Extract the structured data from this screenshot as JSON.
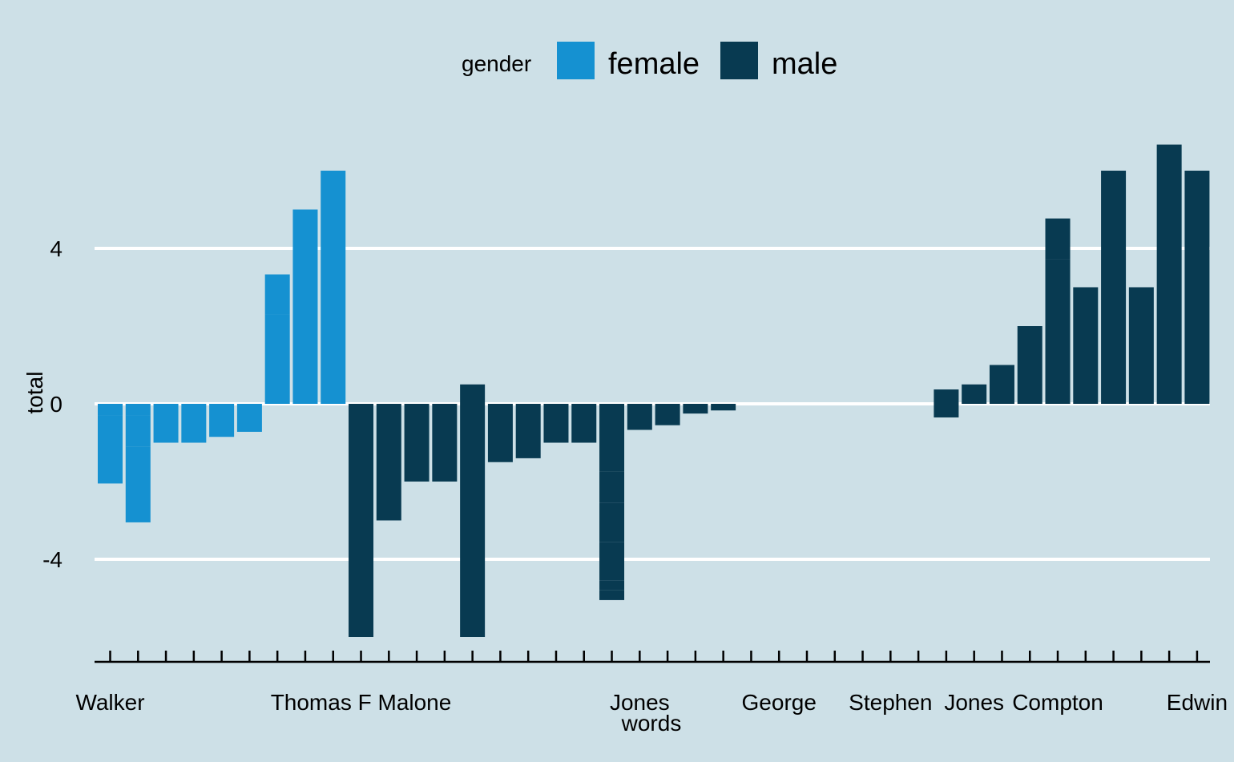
{
  "chart_data": {
    "type": "bar",
    "xlabel": "words",
    "ylabel": "total",
    "ylim": [
      -6.65,
      7.4
    ],
    "y_ticks": [
      -4,
      0,
      4
    ],
    "grid": "horizontal major lines",
    "legend": {
      "title": "gender",
      "position": "top",
      "entries": [
        {
          "name": "female",
          "color": "#1591d1"
        },
        {
          "name": "male",
          "color": "#083a51"
        }
      ]
    },
    "x_tick_count": 40,
    "x_labels": [
      {
        "index": 0,
        "text": "Walker"
      },
      {
        "index": 9,
        "text": "Thomas F Malone"
      },
      {
        "index": 19,
        "text": "Jones"
      },
      {
        "index": 24,
        "text": "George"
      },
      {
        "index": 28,
        "text": "Stephen"
      },
      {
        "index": 31,
        "text": "Jones"
      },
      {
        "index": 34,
        "text": "Compton"
      },
      {
        "index": 39,
        "text": "Edwin"
      }
    ],
    "bars": [
      {
        "gender": "female",
        "segments": [
          -0.3,
          -1.75
        ]
      },
      {
        "gender": "female",
        "segments": [
          -0.3,
          -0.8,
          -1.95
        ]
      },
      {
        "gender": "female",
        "segments": [
          -1.0
        ]
      },
      {
        "gender": "female",
        "segments": [
          -1.0
        ]
      },
      {
        "gender": "female",
        "segments": [
          -0.85
        ]
      },
      {
        "gender": "female",
        "segments": [
          -0.72
        ]
      },
      {
        "gender": "female",
        "segments": [
          2.3,
          1.03
        ]
      },
      {
        "gender": "female",
        "segments": [
          5.0
        ]
      },
      {
        "gender": "female",
        "segments": [
          6.0
        ]
      },
      {
        "gender": "male",
        "segments": [
          -6.0
        ]
      },
      {
        "gender": "male",
        "segments": [
          -3.0
        ]
      },
      {
        "gender": "male",
        "segments": [
          -2.0
        ]
      },
      {
        "gender": "male",
        "segments": [
          -2.0
        ]
      },
      {
        "gender": "male",
        "segments": [
          0.5,
          -2.0,
          -4.0
        ]
      },
      {
        "gender": "male",
        "segments": [
          -1.5
        ]
      },
      {
        "gender": "male",
        "segments": [
          -1.4
        ]
      },
      {
        "gender": "male",
        "segments": [
          -1.0
        ]
      },
      {
        "gender": "male",
        "segments": [
          -1.0
        ]
      },
      {
        "gender": "male",
        "segments": [
          -1.75,
          -0.8,
          -1.0,
          -1.0,
          -0.25,
          -0.25
        ]
      },
      {
        "gender": "male",
        "segments": [
          -0.67
        ]
      },
      {
        "gender": "male",
        "segments": [
          -0.55
        ]
      },
      {
        "gender": "male",
        "segments": [
          -0.25
        ]
      },
      {
        "gender": "male",
        "segments": [
          -0.17
        ]
      },
      {
        "gender": "male",
        "segments": []
      },
      {
        "gender": "male",
        "segments": []
      },
      {
        "gender": "male",
        "segments": []
      },
      {
        "gender": "male",
        "segments": []
      },
      {
        "gender": "male",
        "segments": []
      },
      {
        "gender": "male",
        "segments": []
      },
      {
        "gender": "male",
        "segments": []
      },
      {
        "gender": "male",
        "segments": [
          0.37,
          -0.35
        ]
      },
      {
        "gender": "male",
        "segments": [
          0.5
        ]
      },
      {
        "gender": "male",
        "segments": [
          1.0
        ]
      },
      {
        "gender": "male",
        "segments": [
          2.0
        ]
      },
      {
        "gender": "male",
        "segments": [
          3.72,
          1.05
        ]
      },
      {
        "gender": "male",
        "segments": [
          3.0
        ]
      },
      {
        "gender": "male",
        "segments": [
          6.0
        ]
      },
      {
        "gender": "male",
        "segments": [
          3.0
        ]
      },
      {
        "gender": "male",
        "segments": [
          6.0,
          0.67
        ]
      },
      {
        "gender": "male",
        "segments": [
          6.0
        ]
      }
    ]
  }
}
